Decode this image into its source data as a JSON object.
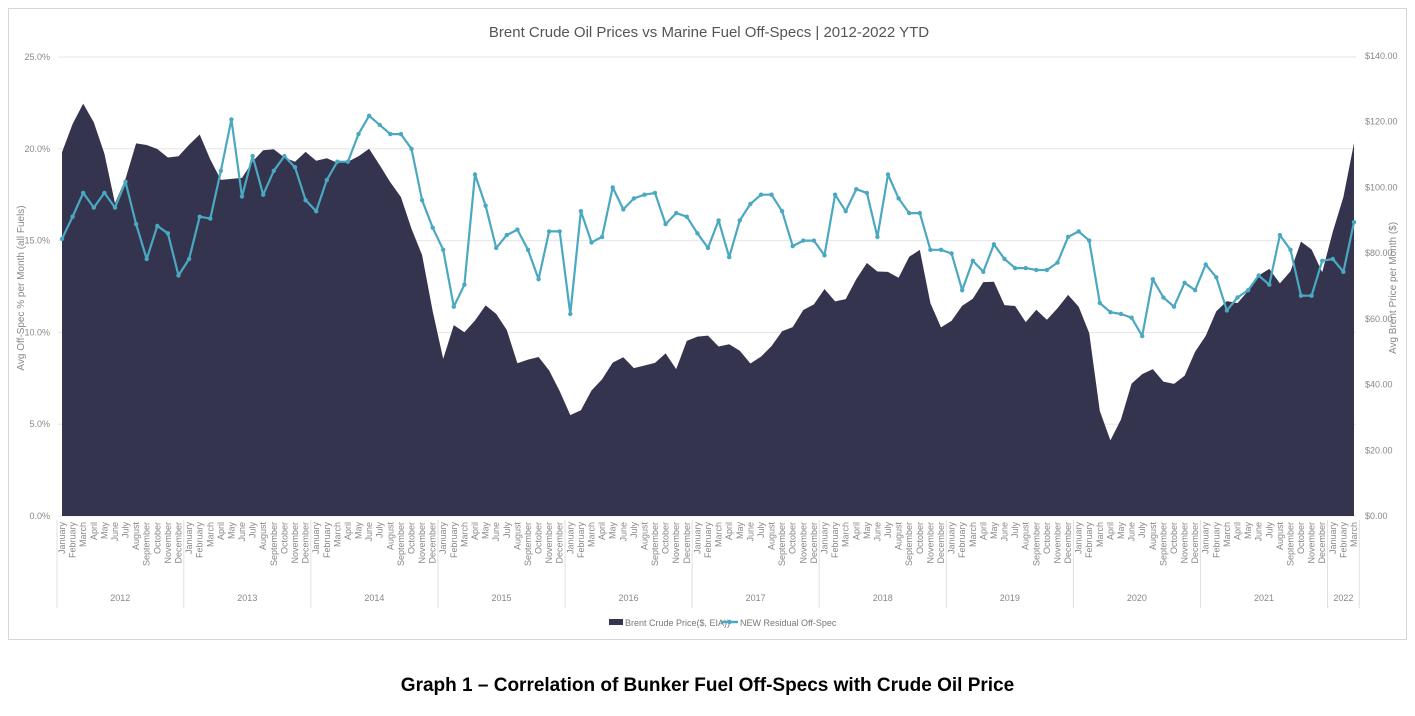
{
  "chart_data": {
    "type": "area+line",
    "title": "Brent Crude Oil Prices vs Marine Fuel Off-Specs | 2012-2022 YTD",
    "ylabel_left": "Avg Off-Spec % per Month (all Fuels)",
    "ylabel_right": "Avg Brent Price per Month ($)",
    "ylim_left": [
      0,
      25
    ],
    "ylim_right": [
      0,
      140
    ],
    "yticks_left": [
      "0.0%",
      "5.0%",
      "10.0%",
      "15.0%",
      "20.0%",
      "25.0%"
    ],
    "yticks_right": [
      "$0.00",
      "$20.00",
      "$40.00",
      "$60.00",
      "$80.00",
      "$100.00",
      "$120.00",
      "$140.00"
    ],
    "months": [
      "January",
      "February",
      "March",
      "April",
      "May",
      "June",
      "July",
      "August",
      "September",
      "October",
      "November",
      "December"
    ],
    "years": [
      {
        "label": "2012",
        "months": 12
      },
      {
        "label": "2013",
        "months": 12
      },
      {
        "label": "2014",
        "months": 12
      },
      {
        "label": "2015",
        "months": 12
      },
      {
        "label": "2016",
        "months": 12
      },
      {
        "label": "2017",
        "months": 12
      },
      {
        "label": "2018",
        "months": 12
      },
      {
        "label": "2019",
        "months": 12
      },
      {
        "label": "2020",
        "months": 12
      },
      {
        "label": "2021",
        "months": 12
      },
      {
        "label": "2022",
        "months": 3
      }
    ],
    "grid": true,
    "legend_position": "bottom-center",
    "series": [
      {
        "name": "Brent Crude Price($, EIA))",
        "type": "area",
        "axis": "right",
        "color": "#35344f",
        "values": [
          110.7,
          119.3,
          125.5,
          119.8,
          110.3,
          95.2,
          102.6,
          113.4,
          112.9,
          111.7,
          109.1,
          109.5,
          113.0,
          116.1,
          108.5,
          102.3,
          102.6,
          102.9,
          107.9,
          111.3,
          111.6,
          109.1,
          107.8,
          110.8,
          108.1,
          108.9,
          107.5,
          107.8,
          109.5,
          111.8,
          106.8,
          101.6,
          97.1,
          87.4,
          79.4,
          62.3,
          47.8,
          58.1,
          55.9,
          59.5,
          64.1,
          61.5,
          56.6,
          46.5,
          47.6,
          48.4,
          44.3,
          38.0,
          30.7,
          32.2,
          38.2,
          41.6,
          46.7,
          48.3,
          45.0,
          45.8,
          46.6,
          49.5,
          44.7,
          53.3,
          54.6,
          54.9,
          51.6,
          52.3,
          50.3,
          46.4,
          48.5,
          51.7,
          56.2,
          57.5,
          62.7,
          64.4,
          69.1,
          65.3,
          66.0,
          72.1,
          77.0,
          74.4,
          74.3,
          72.5,
          78.9,
          81.0,
          64.8,
          57.4,
          59.4,
          64.0,
          66.1,
          71.2,
          71.3,
          64.2,
          63.9,
          59.0,
          62.8,
          59.7,
          63.2,
          67.3,
          63.7,
          55.7,
          32.0,
          23.0,
          29.4,
          40.3,
          43.2,
          44.7,
          40.9,
          40.2,
          42.7,
          50.0,
          54.8,
          62.3,
          65.4,
          64.8,
          68.5,
          73.2,
          75.2,
          70.8,
          74.5,
          83.5,
          81.1,
          74.2,
          86.5,
          97.1,
          113.5
        ]
      },
      {
        "name": "NEW Residual Off-Spec",
        "type": "line",
        "axis": "left",
        "color": "#4aa8c0",
        "values": [
          15.1,
          16.3,
          17.6,
          16.8,
          17.6,
          16.8,
          18.2,
          15.9,
          14.0,
          15.8,
          15.4,
          13.1,
          14.0,
          16.3,
          16.2,
          18.8,
          21.6,
          17.4,
          19.6,
          17.5,
          18.8,
          19.6,
          19.0,
          17.2,
          16.6,
          18.3,
          19.3,
          19.3,
          20.8,
          21.8,
          21.3,
          20.8,
          20.8,
          20.0,
          17.2,
          15.7,
          14.5,
          11.4,
          12.6,
          18.6,
          16.9,
          14.6,
          15.3,
          15.6,
          14.5,
          12.9,
          15.5,
          15.5,
          11.0,
          16.6,
          14.9,
          15.2,
          17.9,
          16.7,
          17.3,
          17.5,
          17.6,
          15.9,
          16.5,
          16.3,
          15.4,
          14.6,
          16.1,
          14.1,
          16.1,
          17.0,
          17.5,
          17.5,
          16.6,
          14.7,
          15.0,
          15.0,
          14.2,
          17.5,
          16.6,
          17.8,
          17.6,
          15.2,
          18.6,
          17.3,
          16.5,
          16.5,
          14.5,
          14.5,
          14.3,
          12.3,
          13.9,
          13.3,
          14.8,
          14.0,
          13.5,
          13.5,
          13.4,
          13.4,
          13.8,
          15.2,
          15.5,
          15.0,
          11.6,
          11.1,
          11.0,
          10.8,
          9.8,
          12.9,
          11.9,
          11.4,
          12.7,
          12.3,
          13.7,
          13.0,
          11.2,
          11.9,
          12.3,
          13.1,
          12.6,
          15.3,
          14.5,
          12.0,
          12.0,
          13.9,
          14.0,
          13.3,
          16.0
        ]
      }
    ]
  },
  "caption": "Graph 1 – Correlation of Bunker Fuel Off-Specs with Crude Oil Price"
}
